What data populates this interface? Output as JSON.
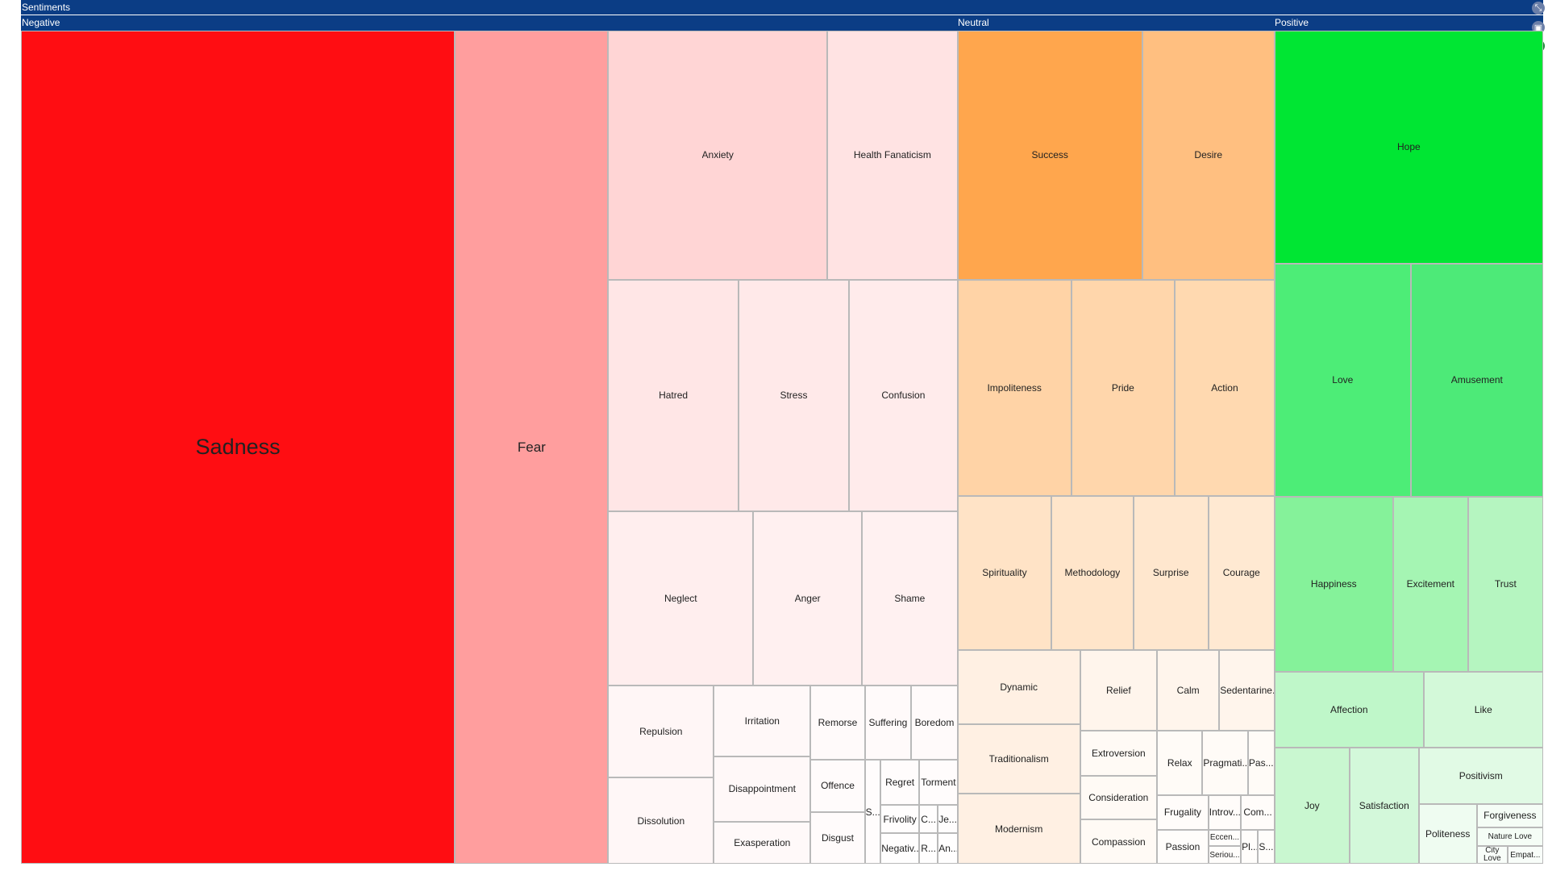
{
  "chart_data": {
    "type": "treemap",
    "title": "Sentiments",
    "groups": [
      {
        "name": "Negative",
        "nodes": [
          {
            "label": "Sadness",
            "color": "#ff0d12"
          },
          {
            "label": "Fear",
            "color": "#ff9e9e"
          },
          {
            "label": "Anxiety",
            "color": "#ffd5d5"
          },
          {
            "label": "Health Fanaticism",
            "color": "#ffe3e3"
          },
          {
            "label": "Hatred",
            "color": "#ffe6e6"
          },
          {
            "label": "Stress",
            "color": "#ffe9e9"
          },
          {
            "label": "Confusion",
            "color": "#ffebeb"
          },
          {
            "label": "Neglect",
            "color": "#ffeeee"
          },
          {
            "label": "Anger",
            "color": "#fff0f0"
          },
          {
            "label": "Shame",
            "color": "#fff1f1"
          },
          {
            "label": "Repulsion",
            "color": "#fff6f6"
          },
          {
            "label": "Dissolution",
            "color": "#fff7f7"
          },
          {
            "label": "Irritation",
            "color": "#fff8f8"
          },
          {
            "label": "Disappointment",
            "color": "#fff8f8"
          },
          {
            "label": "Exasperation",
            "color": "#fff9f9"
          },
          {
            "label": "Remorse",
            "color": "#fffafa"
          },
          {
            "label": "Suffering",
            "color": "#fffafa"
          },
          {
            "label": "Boredom",
            "color": "#fffafa"
          },
          {
            "label": "Offence",
            "color": "#fffbfb"
          },
          {
            "label": "Disgust",
            "color": "#fffbfb"
          },
          {
            "label": "S...",
            "color": "#fffcfc"
          },
          {
            "label": "Regret",
            "color": "#fffcfc"
          },
          {
            "label": "Torment",
            "color": "#fffcfc"
          },
          {
            "label": "Frivolity",
            "color": "#fffdfd"
          },
          {
            "label": "C...",
            "color": "#fffdfd"
          },
          {
            "label": "Je...",
            "color": "#fffdfd"
          },
          {
            "label": "Negativ...",
            "color": "#fffefe"
          },
          {
            "label": "R...",
            "color": "#fffefe"
          },
          {
            "label": "An...",
            "color": "#fffefe"
          }
        ]
      },
      {
        "name": "Neutral",
        "nodes": [
          {
            "label": "Success",
            "color": "#ffa64d"
          },
          {
            "label": "Desire",
            "color": "#ffbf80"
          },
          {
            "label": "Impoliteness",
            "color": "#ffd3a6"
          },
          {
            "label": "Pride",
            "color": "#ffd6ab"
          },
          {
            "label": "Action",
            "color": "#ffd9b0"
          },
          {
            "label": "Spirituality",
            "color": "#ffe3c6"
          },
          {
            "label": "Methodology",
            "color": "#ffe5ca"
          },
          {
            "label": "Surprise",
            "color": "#ffe7ce"
          },
          {
            "label": "Courage",
            "color": "#ffe9d2"
          },
          {
            "label": "Dynamic",
            "color": "#fff0e3"
          },
          {
            "label": "Traditionalism",
            "color": "#fff0e3"
          },
          {
            "label": "Modernism",
            "color": "#fff0e3"
          },
          {
            "label": "Relief",
            "color": "#fff5ec"
          },
          {
            "label": "Calm",
            "color": "#fff5ec"
          },
          {
            "label": "Sedentarine...",
            "color": "#fff5ec"
          },
          {
            "label": "Extroversion",
            "color": "#fffaf5"
          },
          {
            "label": "Consideration",
            "color": "#fffaf5"
          },
          {
            "label": "Compassion",
            "color": "#fffaf5"
          },
          {
            "label": "Relax",
            "color": "#fffbf7"
          },
          {
            "label": "Pragmati...",
            "color": "#fffbf7"
          },
          {
            "label": "Pas...",
            "color": "#fffbf7"
          },
          {
            "label": "Frugality",
            "color": "#fffcfa"
          },
          {
            "label": "Introv...",
            "color": "#fffcfa"
          },
          {
            "label": "Com...",
            "color": "#fffcfa"
          },
          {
            "label": "Passion",
            "color": "#fffdfb"
          },
          {
            "label": "Eccen...",
            "color": "#fffdfb"
          },
          {
            "label": "Seriou...",
            "color": "#fffdfb"
          },
          {
            "label": "Pl...",
            "color": "#fffdfb"
          },
          {
            "label": "S...",
            "color": "#fffdfb"
          }
        ]
      },
      {
        "name": "Positive",
        "nodes": [
          {
            "label": "Hope",
            "color": "#00e633"
          },
          {
            "label": "Love",
            "color": "#4ded77"
          },
          {
            "label": "Amusement",
            "color": "#4dea78"
          },
          {
            "label": "Happiness",
            "color": "#85f29a"
          },
          {
            "label": "Excitement",
            "color": "#a5f5b3"
          },
          {
            "label": "Trust",
            "color": "#b5f5c0"
          },
          {
            "label": "Affection",
            "color": "#bff7c9"
          },
          {
            "label": "Like",
            "color": "#d3f9d9"
          },
          {
            "label": "Joy",
            "color": "#c9f7d0"
          },
          {
            "label": "Satisfaction",
            "color": "#d3f8da"
          },
          {
            "label": "Positivism",
            "color": "#e1fae5"
          },
          {
            "label": "Politeness",
            "color": "#effcf1"
          },
          {
            "label": "Forgiveness",
            "color": "#f5fdf6"
          },
          {
            "label": "Nature Love",
            "color": "#f5fdf6"
          },
          {
            "label": "City Love",
            "color": "#f8fdf9"
          },
          {
            "label": "Empat...",
            "color": "#f8fdf9"
          }
        ]
      }
    ],
    "header_color": "#0b3d85",
    "icons": [
      "collapse-icon",
      "save-icon",
      "download-icon"
    ]
  }
}
